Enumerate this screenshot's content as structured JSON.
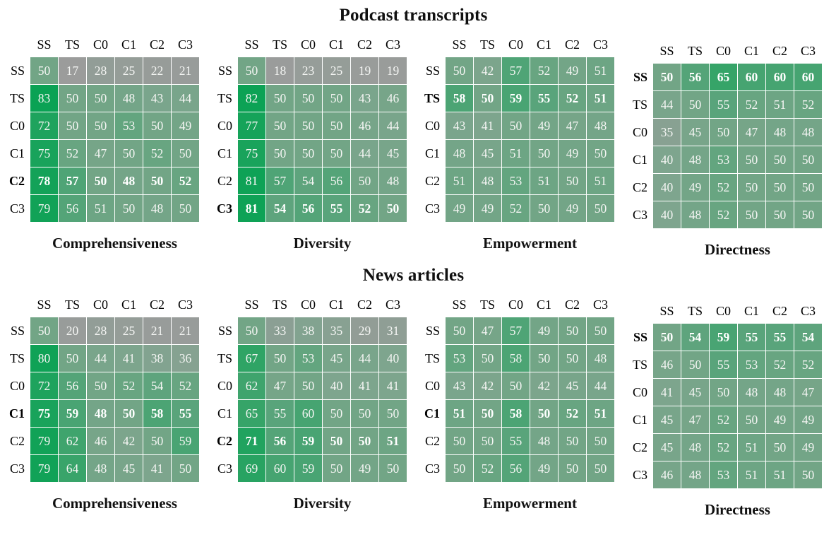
{
  "sections": [
    {
      "title": "Podcast transcripts"
    },
    {
      "title": "News articles"
    }
  ],
  "colors": {
    "background": "#ffffff",
    "cell_text": "#f4f5f3",
    "label_text": "#000000",
    "grid_gap": "#ffffff",
    "colormap_stops": [
      [
        15,
        "#9c9c9c"
      ],
      [
        30,
        "#919d96"
      ],
      [
        40,
        "#7ea58e"
      ],
      [
        50,
        "#72a586"
      ],
      [
        57,
        "#4fa476"
      ],
      [
        65,
        "#36a468"
      ],
      [
        72,
        "#1ea35d"
      ],
      [
        83,
        "#0aa254"
      ]
    ]
  },
  "chart_data": [
    {
      "type": "heatmap",
      "section": 0,
      "title": "Comprehensiveness",
      "x_labels": [
        "SS",
        "TS",
        "C0",
        "C1",
        "C2",
        "C3"
      ],
      "y_labels": [
        "SS",
        "TS",
        "C0",
        "C1",
        "C2",
        "C3"
      ],
      "bold_row": "C2",
      "values": [
        [
          50,
          17,
          28,
          25,
          22,
          21
        ],
        [
          83,
          50,
          50,
          48,
          43,
          44
        ],
        [
          72,
          50,
          50,
          53,
          50,
          49
        ],
        [
          75,
          52,
          47,
          50,
          52,
          50
        ],
        [
          78,
          57,
          50,
          48,
          50,
          52
        ],
        [
          79,
          56,
          51,
          50,
          48,
          50
        ]
      ]
    },
    {
      "type": "heatmap",
      "section": 0,
      "title": "Diversity",
      "x_labels": [
        "SS",
        "TS",
        "C0",
        "C1",
        "C2",
        "C3"
      ],
      "y_labels": [
        "SS",
        "TS",
        "C0",
        "C1",
        "C2",
        "C3"
      ],
      "bold_row": "C3",
      "values": [
        [
          50,
          18,
          23,
          25,
          19,
          19
        ],
        [
          82,
          50,
          50,
          50,
          43,
          46
        ],
        [
          77,
          50,
          50,
          50,
          46,
          44
        ],
        [
          75,
          50,
          50,
          50,
          44,
          45
        ],
        [
          81,
          57,
          54,
          56,
          50,
          48
        ],
        [
          81,
          54,
          56,
          55,
          52,
          50
        ]
      ]
    },
    {
      "type": "heatmap",
      "section": 0,
      "title": "Empowerment",
      "x_labels": [
        "SS",
        "TS",
        "C0",
        "C1",
        "C2",
        "C3"
      ],
      "y_labels": [
        "SS",
        "TS",
        "C0",
        "C1",
        "C2",
        "C3"
      ],
      "bold_row": "TS",
      "values": [
        [
          50,
          42,
          57,
          52,
          49,
          51
        ],
        [
          58,
          50,
          59,
          55,
          52,
          51
        ],
        [
          43,
          41,
          50,
          49,
          47,
          48
        ],
        [
          48,
          45,
          51,
          50,
          49,
          50
        ],
        [
          51,
          48,
          53,
          51,
          50,
          51
        ],
        [
          49,
          49,
          52,
          50,
          49,
          50
        ]
      ]
    },
    {
      "type": "heatmap",
      "section": 0,
      "title": "Directness",
      "x_labels": [
        "SS",
        "TS",
        "C0",
        "C1",
        "C2",
        "C3"
      ],
      "y_labels": [
        "SS",
        "TS",
        "C0",
        "C1",
        "C2",
        "C3"
      ],
      "bold_row": "SS",
      "values": [
        [
          50,
          56,
          65,
          60,
          60,
          60
        ],
        [
          44,
          50,
          55,
          52,
          51,
          52
        ],
        [
          35,
          45,
          50,
          47,
          48,
          48
        ],
        [
          40,
          48,
          53,
          50,
          50,
          50
        ],
        [
          40,
          49,
          52,
          50,
          50,
          50
        ],
        [
          40,
          48,
          52,
          50,
          50,
          50
        ]
      ]
    },
    {
      "type": "heatmap",
      "section": 1,
      "title": "Comprehensiveness",
      "x_labels": [
        "SS",
        "TS",
        "C0",
        "C1",
        "C2",
        "C3"
      ],
      "y_labels": [
        "SS",
        "TS",
        "C0",
        "C1",
        "C2",
        "C3"
      ],
      "bold_row": "C1",
      "values": [
        [
          50,
          20,
          28,
          25,
          21,
          21
        ],
        [
          80,
          50,
          44,
          41,
          38,
          36
        ],
        [
          72,
          56,
          50,
          52,
          54,
          52
        ],
        [
          75,
          59,
          48,
          50,
          58,
          55
        ],
        [
          79,
          62,
          46,
          42,
          50,
          59
        ],
        [
          79,
          64,
          48,
          45,
          41,
          50
        ]
      ]
    },
    {
      "type": "heatmap",
      "section": 1,
      "title": "Diversity",
      "x_labels": [
        "SS",
        "TS",
        "C0",
        "C1",
        "C2",
        "C3"
      ],
      "y_labels": [
        "SS",
        "TS",
        "C0",
        "C1",
        "C2",
        "C3"
      ],
      "bold_row": "C2",
      "values": [
        [
          50,
          33,
          38,
          35,
          29,
          31
        ],
        [
          67,
          50,
          53,
          45,
          44,
          40
        ],
        [
          62,
          47,
          50,
          40,
          41,
          41
        ],
        [
          65,
          55,
          60,
          50,
          50,
          50
        ],
        [
          71,
          56,
          59,
          50,
          50,
          51
        ],
        [
          69,
          60,
          59,
          50,
          49,
          50
        ]
      ]
    },
    {
      "type": "heatmap",
      "section": 1,
      "title": "Empowerment",
      "x_labels": [
        "SS",
        "TS",
        "C0",
        "C1",
        "C2",
        "C3"
      ],
      "y_labels": [
        "SS",
        "TS",
        "C0",
        "C1",
        "C2",
        "C3"
      ],
      "bold_row": "C1",
      "values": [
        [
          50,
          47,
          57,
          49,
          50,
          50
        ],
        [
          53,
          50,
          58,
          50,
          50,
          48
        ],
        [
          43,
          42,
          50,
          42,
          45,
          44
        ],
        [
          51,
          50,
          58,
          50,
          52,
          51
        ],
        [
          50,
          50,
          55,
          48,
          50,
          50
        ],
        [
          50,
          52,
          56,
          49,
          50,
          50
        ]
      ]
    },
    {
      "type": "heatmap",
      "section": 1,
      "title": "Directness",
      "x_labels": [
        "SS",
        "TS",
        "C0",
        "C1",
        "C2",
        "C3"
      ],
      "y_labels": [
        "SS",
        "TS",
        "C0",
        "C1",
        "C2",
        "C3"
      ],
      "bold_row": "SS",
      "values": [
        [
          50,
          54,
          59,
          55,
          55,
          54
        ],
        [
          46,
          50,
          55,
          53,
          52,
          52
        ],
        [
          41,
          45,
          50,
          48,
          48,
          47
        ],
        [
          45,
          47,
          52,
          50,
          49,
          49
        ],
        [
          45,
          48,
          52,
          51,
          50,
          49
        ],
        [
          46,
          48,
          53,
          51,
          51,
          50
        ]
      ]
    }
  ]
}
